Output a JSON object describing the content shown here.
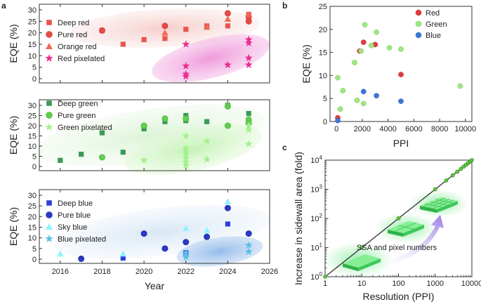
{
  "colors": {
    "deep_red": "#e8554d",
    "pure_red": "#e84a44",
    "orange_red": "#ef6a55",
    "red_pixelated": "#ea2e8d",
    "deep_green": "#3b9a55",
    "pure_green": "#5fd04d",
    "green_pixelated": "#a5f08e",
    "deep_blue": "#2f3fdc",
    "pure_blue": "#2a37c8",
    "sky_blue": "#8ef2ff",
    "blue_pixelated": "#59bfe8",
    "b_red": "#e33a3a",
    "b_green": "#9ee87f",
    "b_blue": "#3b78d8",
    "c_line": "#3b3b3b",
    "c_marker": "#5fc93f",
    "c_pixel": "#4fd86a",
    "c_arrow": "#9a7be6"
  },
  "panel_letters": {
    "a": "a",
    "b": "b",
    "c": "c"
  },
  "chart_data": [
    {
      "id": "a_red",
      "type": "scatter",
      "ylabel": "EQE (%)",
      "ylim": [
        0,
        30
      ],
      "yticks": [
        0,
        5,
        10,
        15,
        20,
        25,
        30
      ],
      "xlim": [
        2015,
        2026
      ],
      "series": [
        {
          "name": "Deep red",
          "marker": "square",
          "color_key": "deep_red",
          "points": [
            [
              2018,
              21
            ],
            [
              2019,
              15
            ],
            [
              2020,
              17
            ],
            [
              2021,
              17.5
            ],
            [
              2022,
              21.5
            ],
            [
              2023,
              23
            ],
            [
              2024,
              23
            ],
            [
              2025,
              28
            ],
            [
              2025,
              26
            ]
          ]
        },
        {
          "name": "Pure red",
          "marker": "circle",
          "color_key": "pure_red",
          "points": [
            [
              2018,
              21
            ],
            [
              2021,
              23
            ],
            [
              2024,
              28.5
            ],
            [
              2025,
              25
            ],
            [
              2025,
              27
            ]
          ]
        },
        {
          "name": "Orange red",
          "marker": "triangle",
          "color_key": "orange_red",
          "points": [
            [
              2021,
              20
            ],
            [
              2023,
              22.5
            ],
            [
              2024,
              26
            ],
            [
              2025,
              28
            ]
          ]
        },
        {
          "name": "Red pixelated",
          "marker": "star",
          "color_key": "red_pixelated",
          "points": [
            [
              2022,
              15
            ],
            [
              2022,
              5.5
            ],
            [
              2022,
              2
            ],
            [
              2022,
              1
            ],
            [
              2024,
              6
            ],
            [
              2025,
              17
            ],
            [
              2025,
              15.5
            ],
            [
              2025,
              9
            ],
            [
              2025,
              6
            ]
          ]
        }
      ]
    },
    {
      "id": "a_green",
      "type": "scatter",
      "ylabel": "EQE (%)",
      "ylim": [
        0,
        30
      ],
      "yticks": [
        0,
        5,
        10,
        15,
        20,
        25,
        30
      ],
      "xlim": [
        2015,
        2026
      ],
      "series": [
        {
          "name": "Deep green",
          "marker": "square",
          "color_key": "deep_green",
          "points": [
            [
              2016,
              3
            ],
            [
              2017,
              6
            ],
            [
              2018,
              16.5
            ],
            [
              2019,
              7
            ],
            [
              2020,
              18.5
            ],
            [
              2021,
              22
            ],
            [
              2022,
              25
            ],
            [
              2022,
              22.5
            ],
            [
              2023,
              22
            ],
            [
              2024,
              30
            ],
            [
              2025,
              26
            ]
          ]
        },
        {
          "name": "Pure green",
          "marker": "circle",
          "color_key": "pure_green",
          "points": [
            [
              2018,
              4.5
            ],
            [
              2020,
              20
            ],
            [
              2021,
              23.5
            ],
            [
              2022,
              23.5
            ],
            [
              2024,
              29.5
            ],
            [
              2024,
              20
            ],
            [
              2025,
              23
            ],
            [
              2025,
              21
            ]
          ]
        },
        {
          "name": "Green pixelated",
          "marker": "star",
          "color_key": "green_pixelated",
          "points": [
            [
              2020,
              3
            ],
            [
              2022,
              15
            ],
            [
              2022,
              9
            ],
            [
              2022,
              7.5
            ],
            [
              2022,
              6
            ],
            [
              2022,
              4
            ],
            [
              2022,
              2
            ],
            [
              2022,
              0.5
            ],
            [
              2023,
              12.5
            ],
            [
              2023,
              3.5
            ],
            [
              2025,
              20
            ],
            [
              2025,
              18
            ],
            [
              2025,
              11
            ]
          ]
        }
      ]
    },
    {
      "id": "a_blue",
      "type": "scatter",
      "ylabel": "EQE (%)",
      "xlabel": "Year",
      "ylim": [
        0,
        30
      ],
      "yticks": [
        0,
        5,
        10,
        15,
        20,
        25,
        30
      ],
      "xlim": [
        2015,
        2026
      ],
      "xticks": [
        2016,
        2018,
        2020,
        2022,
        2024,
        2026
      ],
      "series": [
        {
          "name": "Deep blue",
          "marker": "square",
          "color_key": "deep_blue",
          "points": [
            [
              2019,
              0.5
            ],
            [
              2022,
              3
            ],
            [
              2024,
              16.5
            ]
          ]
        },
        {
          "name": "Pure blue",
          "marker": "circle",
          "color_key": "pure_blue",
          "points": [
            [
              2017,
              0.2
            ],
            [
              2020,
              12
            ],
            [
              2021,
              5
            ],
            [
              2022,
              8
            ],
            [
              2023,
              10.5
            ],
            [
              2024,
              24
            ],
            [
              2025,
              12
            ]
          ]
        },
        {
          "name": "Sky blue",
          "marker": "triangle",
          "color_key": "sky_blue",
          "points": [
            [
              2016,
              2.5
            ],
            [
              2019,
              2.5
            ],
            [
              2022,
              14.5
            ],
            [
              2023,
              13.5
            ],
            [
              2024,
              27
            ]
          ]
        },
        {
          "name": "Blue pixelated",
          "marker": "star",
          "color_key": "blue_pixelated",
          "points": [
            [
              2022,
              3
            ],
            [
              2022,
              1
            ],
            [
              2025,
              6.5
            ],
            [
              2025,
              3.5
            ]
          ]
        }
      ]
    },
    {
      "id": "b",
      "type": "scatter",
      "xlabel": "PPI",
      "ylabel": "EQE (%)",
      "xlim": [
        -500,
        10500
      ],
      "ylim": [
        0,
        25
      ],
      "xticks": [
        0,
        2000,
        4000,
        6000,
        8000,
        10000
      ],
      "yticks": [
        0,
        5,
        10,
        15,
        20,
        25
      ],
      "legend_position": "top-right",
      "series": [
        {
          "name": "Red",
          "color_key": "b_red",
          "points": [
            [
              100,
              0.8
            ],
            [
              1800,
              15.3
            ],
            [
              2100,
              17.2
            ],
            [
              3000,
              16.7
            ],
            [
              5000,
              10.2
            ]
          ]
        },
        {
          "name": "Green",
          "color_key": "b_green",
          "points": [
            [
              100,
              9.5
            ],
            [
              300,
              2.7
            ],
            [
              500,
              6.7
            ],
            [
              1400,
              12.8
            ],
            [
              1600,
              4.6
            ],
            [
              1900,
              15.3
            ],
            [
              2100,
              3.9
            ],
            [
              2200,
              21
            ],
            [
              2700,
              16.5
            ],
            [
              3100,
              19.4
            ],
            [
              4100,
              16
            ],
            [
              5000,
              15.7
            ],
            [
              9600,
              7.7
            ]
          ]
        },
        {
          "name": "Blue",
          "color_key": "b_blue",
          "points": [
            [
              100,
              0.2
            ],
            [
              2100,
              6.5
            ],
            [
              3100,
              5.6
            ],
            [
              5000,
              4.4
            ]
          ]
        }
      ]
    },
    {
      "id": "c",
      "type": "line",
      "scale": "log-log",
      "xlabel": "Resolution (PPI)",
      "ylabel": "Increase in sidewall area (fold)",
      "xlim": [
        1,
        10000
      ],
      "ylim": [
        1,
        10000
      ],
      "xticks": [
        1,
        10,
        100,
        1000,
        10000
      ],
      "xtick_labels": [
        "1",
        "10",
        "100",
        "1000",
        "10000"
      ],
      "yticks": [
        1,
        10,
        100,
        1000,
        10000
      ],
      "ytick_labels": [
        {
          "base": "10",
          "exp": "0"
        },
        {
          "base": "10",
          "exp": "1"
        },
        {
          "base": "10",
          "exp": "2"
        },
        {
          "base": "10",
          "exp": "3"
        },
        {
          "base": "10",
          "exp": "4"
        }
      ],
      "line": [
        [
          1,
          1
        ],
        [
          10000,
          10000
        ]
      ],
      "points": [
        [
          1,
          1
        ],
        [
          10,
          10
        ],
        [
          100,
          100
        ],
        [
          1000,
          1000
        ],
        [
          2000,
          2000
        ],
        [
          3000,
          3000
        ],
        [
          4000,
          4000
        ],
        [
          5000,
          5000
        ],
        [
          6000,
          6000
        ],
        [
          7000,
          7000
        ],
        [
          8000,
          8000
        ],
        [
          9000,
          9000
        ],
        [
          10000,
          10000
        ]
      ],
      "annotation": "SSA and pixel numbers"
    }
  ]
}
